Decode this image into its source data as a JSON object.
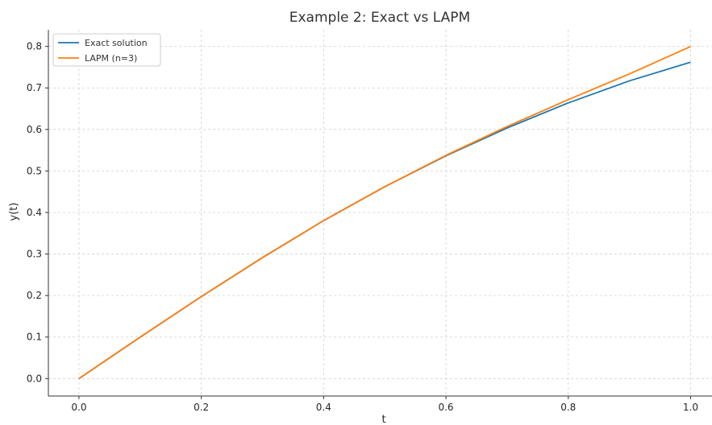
{
  "chart_data": {
    "type": "line",
    "title": "Example 2: Exact vs LAPM",
    "xlabel": "t",
    "ylabel": "y(t)",
    "xlim": [
      -0.05,
      1.035
    ],
    "ylim": [
      -0.042,
      0.84
    ],
    "xticks": [
      0.0,
      0.2,
      0.4,
      0.6,
      0.8,
      1.0
    ],
    "xtick_labels": [
      "0.0",
      "0.2",
      "0.4",
      "0.6",
      "0.8",
      "1.0"
    ],
    "yticks": [
      0.0,
      0.1,
      0.2,
      0.3,
      0.4,
      0.5,
      0.6,
      0.7,
      0.8
    ],
    "ytick_labels": [
      "0.0",
      "0.1",
      "0.2",
      "0.3",
      "0.4",
      "0.5",
      "0.6",
      "0.7",
      "0.8"
    ],
    "grid": true,
    "legend_position": "top-left",
    "x": [
      0.0,
      0.1,
      0.2,
      0.3,
      0.4,
      0.5,
      0.6,
      0.7,
      0.8,
      0.9,
      1.0
    ],
    "series": [
      {
        "name": "Exact solution",
        "color": "#1f77b4",
        "values": [
          0.0,
          0.0997,
          0.1974,
          0.2913,
          0.3805,
          0.4621,
          0.5365,
          0.6035,
          0.664,
          0.717,
          0.762
        ]
      },
      {
        "name": "LAPM (n=3)",
        "color": "#ff7f0e",
        "values": [
          0.0,
          0.0997,
          0.1974,
          0.2913,
          0.3803,
          0.4621,
          0.5376,
          0.607,
          0.6717,
          0.7338,
          0.7997
        ]
      }
    ]
  }
}
